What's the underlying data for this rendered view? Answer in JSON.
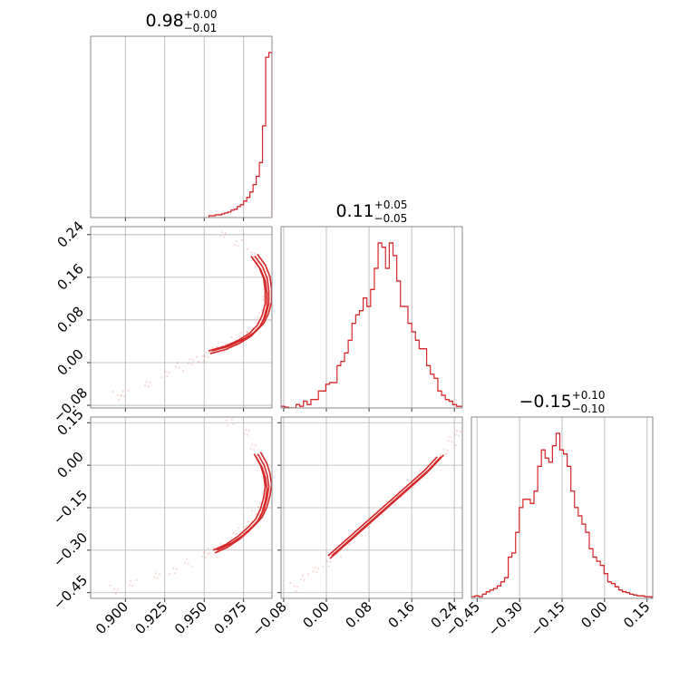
{
  "chart_data": {
    "type": "corner",
    "color": "#d62728",
    "grid": true,
    "parameters": [
      {
        "median": "0.98",
        "plus": "+0.00",
        "minus": "−0.01",
        "range": [
          0.878,
          0.993
        ],
        "ticks": [
          0.9,
          0.925,
          0.95,
          0.975
        ],
        "tick_labels": [
          "0.900",
          "0.925",
          "0.950",
          "0.975"
        ]
      },
      {
        "median": "0.11",
        "plus": "+0.05",
        "minus": "−0.05",
        "range": [
          -0.085,
          0.255
        ],
        "ticks": [
          -0.08,
          0.0,
          0.08,
          0.16,
          0.24
        ],
        "tick_labels": [
          "−0.08",
          "0.00",
          "0.08",
          "0.16",
          "0.24"
        ]
      },
      {
        "median": "−0.15",
        "plus": "+0.10",
        "minus": "−0.10",
        "range": [
          -0.47,
          0.17
        ],
        "ticks": [
          -0.45,
          -0.3,
          -0.15,
          0.0,
          0.15
        ],
        "tick_labels": [
          "−0.45",
          "−0.30",
          "−0.15",
          "0.00",
          "0.15"
        ]
      }
    ],
    "histograms": [
      {
        "param": 0,
        "bins": [
          0.953,
          0.955,
          0.957,
          0.959,
          0.961,
          0.963,
          0.965,
          0.967,
          0.969,
          0.971,
          0.973,
          0.975,
          0.977,
          0.979,
          0.981,
          0.983,
          0.985,
          0.987,
          0.989,
          0.991,
          0.993
        ],
        "counts": [
          2,
          2,
          3,
          3,
          4,
          5,
          6,
          8,
          9,
          12,
          14,
          18,
          22,
          28,
          36,
          45,
          60,
          100,
          175,
          180
        ]
      },
      {
        "param": 1,
        "bins": [
          -0.085,
          -0.078,
          -0.071,
          -0.064,
          -0.057,
          -0.05,
          -0.043,
          -0.036,
          -0.029,
          -0.022,
          -0.015,
          -0.008,
          -0.001,
          0.006,
          0.013,
          0.02,
          0.027,
          0.034,
          0.041,
          0.048,
          0.055,
          0.062,
          0.069,
          0.076,
          0.083,
          0.09,
          0.097,
          0.104,
          0.111,
          0.118,
          0.125,
          0.132,
          0.139,
          0.146,
          0.153,
          0.16,
          0.167,
          0.174,
          0.181,
          0.188,
          0.195,
          0.202,
          0.209,
          0.216,
          0.223,
          0.23,
          0.237,
          0.244,
          0.251,
          0.258
        ],
        "counts": [
          2,
          1,
          0,
          0,
          4,
          2,
          8,
          4,
          10,
          10,
          20,
          20,
          28,
          30,
          30,
          50,
          55,
          65,
          80,
          100,
          110,
          115,
          130,
          120,
          140,
          165,
          195,
          190,
          165,
          195,
          180,
          150,
          120,
          120,
          100,
          90,
          80,
          70,
          70,
          50,
          40,
          35,
          20,
          15,
          10,
          8,
          4,
          2,
          2
        ]
      },
      {
        "param": 2,
        "bins": [
          -0.47,
          -0.457,
          -0.444,
          -0.431,
          -0.418,
          -0.405,
          -0.392,
          -0.379,
          -0.366,
          -0.353,
          -0.34,
          -0.327,
          -0.314,
          -0.301,
          -0.288,
          -0.275,
          -0.262,
          -0.249,
          -0.236,
          -0.223,
          -0.21,
          -0.197,
          -0.184,
          -0.171,
          -0.158,
          -0.145,
          -0.132,
          -0.119,
          -0.106,
          -0.093,
          -0.08,
          -0.067,
          -0.054,
          -0.041,
          -0.028,
          -0.015,
          -0.002,
          0.011,
          0.024,
          0.037,
          0.05,
          0.063,
          0.076,
          0.089,
          0.102,
          0.115,
          0.128,
          0.141,
          0.154,
          0.167
        ],
        "counts": [
          2,
          3,
          2,
          5,
          8,
          10,
          12,
          15,
          20,
          25,
          50,
          55,
          80,
          110,
          120,
          120,
          115,
          130,
          160,
          180,
          170,
          165,
          185,
          200,
          180,
          175,
          160,
          130,
          110,
          100,
          90,
          80,
          60,
          50,
          45,
          40,
          30,
          20,
          18,
          14,
          10,
          8,
          7,
          5,
          4,
          3,
          3,
          2,
          2
        ]
      }
    ],
    "panels_2d": [
      {
        "x_param": 0,
        "y_param": 1,
        "samples": [
          [
            0.895,
            -0.062
          ],
          [
            0.9,
            -0.06
          ],
          [
            0.914,
            -0.04
          ],
          [
            0.925,
            -0.02
          ],
          [
            0.934,
            -0.008
          ],
          [
            0.941,
            0.0
          ],
          [
            0.948,
            0.008
          ],
          [
            0.953,
            0.018
          ],
          [
            0.955,
            0.02
          ],
          [
            0.96,
            0.025
          ],
          [
            0.965,
            0.032
          ],
          [
            0.97,
            0.04
          ],
          [
            0.975,
            0.05
          ],
          [
            0.979,
            0.06
          ],
          [
            0.983,
            0.072
          ],
          [
            0.986,
            0.085
          ],
          [
            0.988,
            0.1
          ],
          [
            0.99,
            0.115
          ],
          [
            0.99,
            0.13
          ],
          [
            0.989,
            0.15
          ],
          [
            0.988,
            0.165
          ],
          [
            0.985,
            0.185
          ],
          [
            0.98,
            0.205
          ],
          [
            0.972,
            0.222
          ],
          [
            0.962,
            0.24
          ]
        ],
        "contour_path": [
          [
            0.955,
            0.022
          ],
          [
            0.965,
            0.03
          ],
          [
            0.974,
            0.042
          ],
          [
            0.981,
            0.055
          ],
          [
            0.986,
            0.07
          ],
          [
            0.989,
            0.088
          ],
          [
            0.991,
            0.11
          ],
          [
            0.991,
            0.135
          ],
          [
            0.99,
            0.158
          ],
          [
            0.987,
            0.18
          ],
          [
            0.982,
            0.2
          ]
        ]
      },
      {
        "x_param": 0,
        "y_param": 2,
        "samples": [
          [
            0.893,
            -0.44
          ],
          [
            0.905,
            -0.42
          ],
          [
            0.92,
            -0.39
          ],
          [
            0.93,
            -0.37
          ],
          [
            0.94,
            -0.345
          ],
          [
            0.95,
            -0.32
          ],
          [
            0.955,
            -0.3
          ],
          [
            0.962,
            -0.28
          ],
          [
            0.968,
            -0.255
          ],
          [
            0.974,
            -0.23
          ],
          [
            0.979,
            -0.205
          ],
          [
            0.983,
            -0.175
          ],
          [
            0.987,
            -0.145
          ],
          [
            0.989,
            -0.11
          ],
          [
            0.99,
            -0.075
          ],
          [
            0.99,
            -0.04
          ],
          [
            0.988,
            -0.005
          ],
          [
            0.986,
            0.03
          ],
          [
            0.982,
            0.07
          ],
          [
            0.976,
            0.11
          ],
          [
            0.966,
            0.15
          ]
        ],
        "contour_path": [
          [
            0.958,
            -0.3
          ],
          [
            0.966,
            -0.28
          ],
          [
            0.974,
            -0.25
          ],
          [
            0.98,
            -0.22
          ],
          [
            0.985,
            -0.19
          ],
          [
            0.988,
            -0.155
          ],
          [
            0.99,
            -0.115
          ],
          [
            0.991,
            -0.075
          ],
          [
            0.99,
            -0.035
          ],
          [
            0.988,
            0.0
          ],
          [
            0.984,
            0.04
          ]
        ]
      },
      {
        "x_param": 1,
        "y_param": 2,
        "samples": [
          [
            -0.06,
            -0.43
          ],
          [
            -0.04,
            -0.4
          ],
          [
            -0.02,
            -0.37
          ],
          [
            0.0,
            -0.345
          ],
          [
            0.02,
            -0.31
          ],
          [
            0.04,
            -0.275
          ],
          [
            0.06,
            -0.24
          ],
          [
            0.08,
            -0.205
          ],
          [
            0.1,
            -0.17
          ],
          [
            0.12,
            -0.135
          ],
          [
            0.14,
            -0.1
          ],
          [
            0.16,
            -0.065
          ],
          [
            0.18,
            -0.03
          ],
          [
            0.2,
            0.01
          ],
          [
            0.22,
            0.05
          ],
          [
            0.235,
            0.085
          ],
          [
            0.245,
            0.11
          ]
        ],
        "contour_path": [
          [
            0.01,
            -0.32
          ],
          [
            0.04,
            -0.27
          ],
          [
            0.07,
            -0.22
          ],
          [
            0.1,
            -0.17
          ],
          [
            0.13,
            -0.12
          ],
          [
            0.16,
            -0.07
          ],
          [
            0.19,
            -0.02
          ],
          [
            0.215,
            0.03
          ]
        ]
      }
    ]
  }
}
